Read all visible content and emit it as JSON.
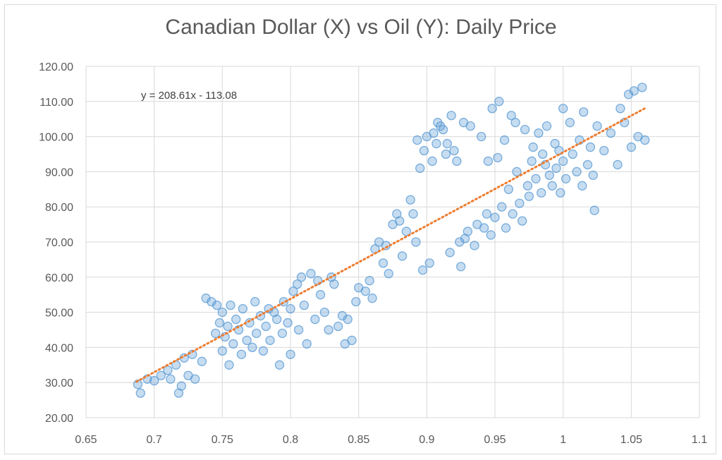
{
  "chart_data": {
    "type": "scatter",
    "title": "Canadian Dollar (X) vs Oil (Y): Daily Price",
    "xlabel": "",
    "ylabel": "",
    "xlim": [
      0.65,
      1.1
    ],
    "ylim": [
      20,
      120
    ],
    "x_ticks": [
      "0.65",
      "0.7",
      "0.75",
      "0.8",
      "0.85",
      "0.9",
      "0.95",
      "1",
      "1.05",
      "1.1"
    ],
    "y_ticks": [
      "20.00",
      "30.00",
      "40.00",
      "50.00",
      "60.00",
      "70.00",
      "80.00",
      "90.00",
      "100.00",
      "110.00",
      "120.00"
    ],
    "grid": "both",
    "trendline": {
      "slope": 208.61,
      "intercept": -113.08,
      "x_range": [
        0.687,
        1.06
      ],
      "label": "y = 208.61x - 113.08"
    },
    "colors": {
      "points": "#5b9bd5",
      "trendline": "#ed7d31",
      "grid": "#d9d9d9"
    },
    "series": [
      {
        "values": [
          [
            0.688,
            29.5
          ],
          [
            0.69,
            27
          ],
          [
            0.695,
            31
          ],
          [
            0.7,
            30.5
          ],
          [
            0.705,
            32
          ],
          [
            0.71,
            33.5
          ],
          [
            0.712,
            31
          ],
          [
            0.716,
            35
          ],
          [
            0.718,
            27
          ],
          [
            0.72,
            29
          ],
          [
            0.722,
            37
          ],
          [
            0.725,
            32
          ],
          [
            0.728,
            38
          ],
          [
            0.73,
            31
          ],
          [
            0.735,
            36
          ],
          [
            0.738,
            54
          ],
          [
            0.742,
            53
          ],
          [
            0.745,
            44
          ],
          [
            0.746,
            52
          ],
          [
            0.748,
            47
          ],
          [
            0.75,
            39
          ],
          [
            0.75,
            50
          ],
          [
            0.752,
            43
          ],
          [
            0.754,
            46
          ],
          [
            0.755,
            35
          ],
          [
            0.756,
            52
          ],
          [
            0.758,
            41
          ],
          [
            0.76,
            48
          ],
          [
            0.762,
            45
          ],
          [
            0.764,
            38
          ],
          [
            0.765,
            51
          ],
          [
            0.768,
            42
          ],
          [
            0.77,
            47
          ],
          [
            0.772,
            40
          ],
          [
            0.774,
            53
          ],
          [
            0.775,
            44
          ],
          [
            0.778,
            49
          ],
          [
            0.78,
            39
          ],
          [
            0.782,
            46
          ],
          [
            0.784,
            51
          ],
          [
            0.785,
            42
          ],
          [
            0.788,
            50
          ],
          [
            0.79,
            48
          ],
          [
            0.792,
            35
          ],
          [
            0.794,
            44
          ],
          [
            0.795,
            53
          ],
          [
            0.798,
            47
          ],
          [
            0.8,
            38
          ],
          [
            0.8,
            51
          ],
          [
            0.802,
            56
          ],
          [
            0.805,
            58
          ],
          [
            0.806,
            45
          ],
          [
            0.808,
            60
          ],
          [
            0.81,
            52
          ],
          [
            0.812,
            41
          ],
          [
            0.815,
            61
          ],
          [
            0.818,
            48
          ],
          [
            0.82,
            59
          ],
          [
            0.822,
            55
          ],
          [
            0.825,
            50
          ],
          [
            0.828,
            45
          ],
          [
            0.83,
            60
          ],
          [
            0.832,
            58
          ],
          [
            0.835,
            46
          ],
          [
            0.838,
            49
          ],
          [
            0.84,
            41
          ],
          [
            0.842,
            48
          ],
          [
            0.845,
            42
          ],
          [
            0.848,
            53
          ],
          [
            0.85,
            57
          ],
          [
            0.855,
            56
          ],
          [
            0.858,
            59
          ],
          [
            0.86,
            54
          ],
          [
            0.862,
            68
          ],
          [
            0.865,
            70
          ],
          [
            0.868,
            64
          ],
          [
            0.87,
            69
          ],
          [
            0.872,
            61
          ],
          [
            0.875,
            75
          ],
          [
            0.878,
            78
          ],
          [
            0.88,
            76
          ],
          [
            0.882,
            66
          ],
          [
            0.885,
            73
          ],
          [
            0.888,
            82
          ],
          [
            0.89,
            78
          ],
          [
            0.892,
            70
          ],
          [
            0.893,
            99
          ],
          [
            0.895,
            91
          ],
          [
            0.897,
            62
          ],
          [
            0.898,
            96
          ],
          [
            0.9,
            100
          ],
          [
            0.902,
            64
          ],
          [
            0.904,
            93
          ],
          [
            0.905,
            101
          ],
          [
            0.907,
            98
          ],
          [
            0.908,
            104
          ],
          [
            0.91,
            103
          ],
          [
            0.912,
            102
          ],
          [
            0.914,
            95
          ],
          [
            0.915,
            98
          ],
          [
            0.917,
            67
          ],
          [
            0.918,
            106
          ],
          [
            0.92,
            96
          ],
          [
            0.922,
            93
          ],
          [
            0.924,
            70
          ],
          [
            0.925,
            63
          ],
          [
            0.927,
            104
          ],
          [
            0.928,
            71
          ],
          [
            0.93,
            73
          ],
          [
            0.932,
            103
          ],
          [
            0.935,
            69
          ],
          [
            0.937,
            75
          ],
          [
            0.94,
            100
          ],
          [
            0.942,
            74
          ],
          [
            0.944,
            78
          ],
          [
            0.945,
            93
          ],
          [
            0.947,
            72
          ],
          [
            0.948,
            108
          ],
          [
            0.95,
            77
          ],
          [
            0.952,
            94
          ],
          [
            0.953,
            110
          ],
          [
            0.955,
            80
          ],
          [
            0.957,
            99
          ],
          [
            0.958,
            74
          ],
          [
            0.96,
            85
          ],
          [
            0.962,
            106
          ],
          [
            0.963,
            78
          ],
          [
            0.965,
            104
          ],
          [
            0.966,
            90
          ],
          [
            0.968,
            81
          ],
          [
            0.97,
            76
          ],
          [
            0.972,
            102
          ],
          [
            0.974,
            86
          ],
          [
            0.975,
            83
          ],
          [
            0.977,
            93
          ],
          [
            0.978,
            97
          ],
          [
            0.98,
            88
          ],
          [
            0.982,
            101
          ],
          [
            0.984,
            84
          ],
          [
            0.985,
            95
          ],
          [
            0.987,
            92
          ],
          [
            0.988,
            103
          ],
          [
            0.99,
            89
          ],
          [
            0.992,
            86
          ],
          [
            0.994,
            98
          ],
          [
            0.995,
            91
          ],
          [
            0.997,
            96
          ],
          [
            0.998,
            84
          ],
          [
            1.0,
            93
          ],
          [
            1.0,
            108
          ],
          [
            1.002,
            88
          ],
          [
            1.005,
            104
          ],
          [
            1.007,
            95
          ],
          [
            1.01,
            90
          ],
          [
            1.012,
            99
          ],
          [
            1.014,
            86
          ],
          [
            1.015,
            107
          ],
          [
            1.018,
            92
          ],
          [
            1.02,
            97
          ],
          [
            1.022,
            89
          ],
          [
            1.023,
            79
          ],
          [
            1.025,
            103
          ],
          [
            1.03,
            96
          ],
          [
            1.035,
            101
          ],
          [
            1.04,
            92
          ],
          [
            1.042,
            108
          ],
          [
            1.045,
            104
          ],
          [
            1.048,
            112
          ],
          [
            1.05,
            97
          ],
          [
            1.052,
            113
          ],
          [
            1.055,
            100
          ],
          [
            1.058,
            114
          ],
          [
            1.06,
            99
          ]
        ]
      }
    ]
  }
}
